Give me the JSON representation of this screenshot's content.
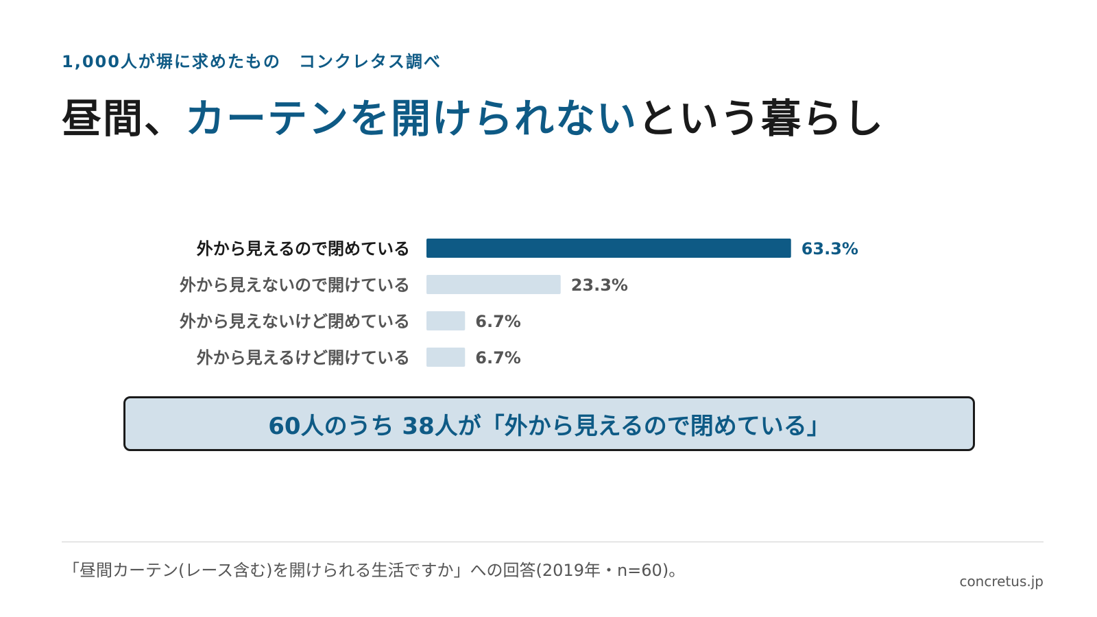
{
  "header": {
    "subtitle": "1,000人が塀に求めたもの　コンクレタス調べ",
    "headline_pre": "昼間、",
    "headline_accent": "カーテンを開けられない",
    "headline_post": "という暮らし"
  },
  "chart_data": {
    "type": "bar",
    "orientation": "horizontal",
    "categories": [
      "外から見えるので閉めている",
      "外から見えないので開けている",
      "外から見えないけど閉めている",
      "外から見えるけど開けている"
    ],
    "values": [
      63.3,
      23.3,
      6.7,
      6.7
    ],
    "value_labels": [
      "63.3%",
      "23.3%",
      "6.7%",
      "6.7%"
    ],
    "unit": "%",
    "highlight_index": 0,
    "xlim": [
      0,
      100
    ],
    "grid": false,
    "colors": {
      "highlight_bar": "#0e5a85",
      "other_bar": "#d2e0ea",
      "highlight_text": "#0e5a85",
      "other_text": "#555555",
      "highlight_label": "#1a1a1a"
    }
  },
  "callout": {
    "text": "60人のうち 38人が「外から見えるので閉めている」"
  },
  "footer": {
    "note": "「昼間カーテン(レース含む)を開けられる生活ですか」への回答(2019年・n=60)。",
    "credit": "concretus.jp"
  }
}
